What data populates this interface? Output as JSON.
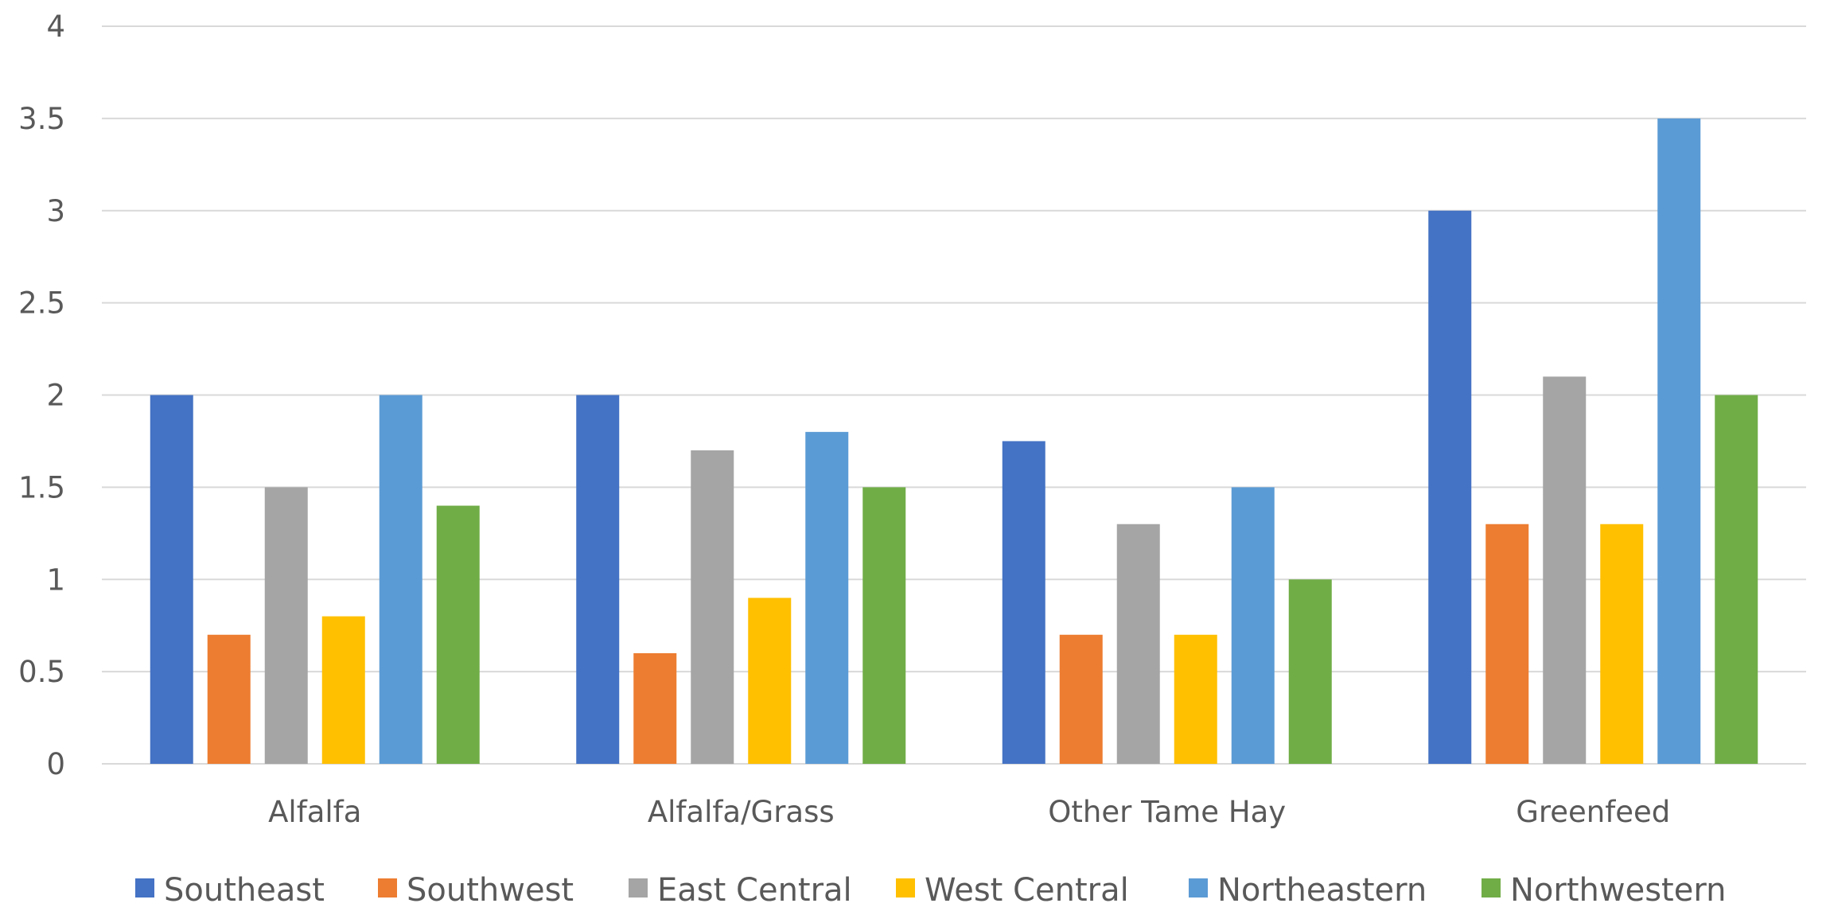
{
  "chart_data": {
    "type": "bar",
    "title": "",
    "xlabel": "",
    "ylabel": "",
    "ylim": [
      0,
      4
    ],
    "yticks": [
      0,
      0.5,
      1,
      1.5,
      2,
      2.5,
      3,
      3.5,
      4
    ],
    "ytick_labels": [
      "0",
      "0.5",
      "1",
      "1.5",
      "2",
      "2.5",
      "3",
      "3.5",
      "4"
    ],
    "grid": true,
    "legend_position": "bottom",
    "categories": [
      "Alfalfa",
      "Alfalfa/Grass",
      "Other Tame Hay",
      "Greenfeed"
    ],
    "series": [
      {
        "name": "Southeast",
        "color": "#4472c4",
        "values": [
          2.0,
          2.0,
          1.75,
          3.0
        ]
      },
      {
        "name": "Southwest",
        "color": "#ed7d31",
        "values": [
          0.7,
          0.6,
          0.7,
          1.3
        ]
      },
      {
        "name": "East Central",
        "color": "#a5a5a5",
        "values": [
          1.5,
          1.7,
          1.3,
          2.1
        ]
      },
      {
        "name": "West Central",
        "color": "#ffc000",
        "values": [
          0.8,
          0.9,
          0.7,
          1.3
        ]
      },
      {
        "name": "Northeastern",
        "color": "#5b9bd5",
        "values": [
          2.0,
          1.8,
          1.5,
          3.5
        ]
      },
      {
        "name": "Northwestern",
        "color": "#70ad47",
        "values": [
          1.4,
          1.5,
          1.0,
          2.0
        ]
      }
    ]
  }
}
